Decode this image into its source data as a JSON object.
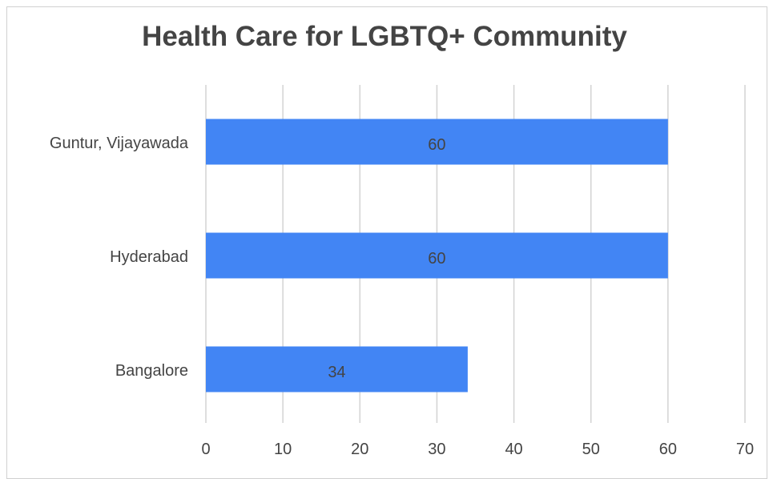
{
  "chart_data": {
    "type": "bar",
    "orientation": "horizontal",
    "title": "Health Care for LGBTQ+ Community",
    "categories": [
      "Guntur, Vijayawada",
      "Hyderabad",
      "Bangalore"
    ],
    "values": [
      60,
      60,
      34
    ],
    "xlabel": "",
    "ylabel": "",
    "xlim": [
      0,
      70
    ],
    "xticks": [
      0,
      10,
      20,
      30,
      40,
      50,
      60,
      70
    ],
    "grid": true,
    "legend": "none",
    "bar_color": "#4285f4",
    "data_labels": true
  }
}
